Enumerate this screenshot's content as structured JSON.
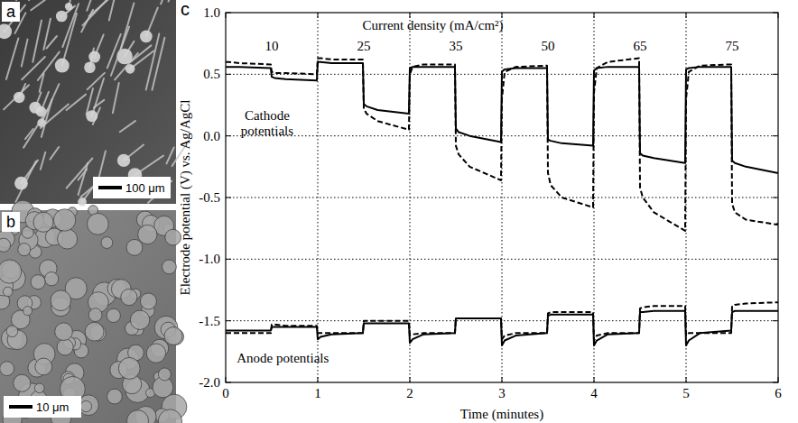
{
  "images": [
    {
      "letter": "a",
      "scale_bar": "100 μm"
    },
    {
      "letter": "b",
      "scale_bar": "10 μm"
    }
  ],
  "chart_data": {
    "letter": "c",
    "type": "line",
    "x_label": "Time (minutes)",
    "y_label": "Electrode potential (V) vs. Ag/AgCl",
    "xlim": [
      0,
      6
    ],
    "xticks": [
      0,
      1,
      2,
      3,
      4,
      5,
      6
    ],
    "ylim": [
      -2,
      1
    ],
    "yticks": [
      {
        "value": -2,
        "label": "-2.0"
      },
      {
        "value": -1.5,
        "label": "-1.5"
      },
      {
        "value": -1,
        "label": "-1.0"
      },
      {
        "value": -0.5,
        "label": "-0.5"
      },
      {
        "value": 0,
        "label": "0.0"
      },
      {
        "value": 0.5,
        "label": "0.5"
      },
      {
        "value": 1,
        "label": "1.0"
      }
    ],
    "grid": true,
    "current_density": {
      "label": "Current density (mA/cm²)",
      "values": [
        10,
        25,
        35,
        50,
        65,
        75
      ]
    },
    "annotations": [
      "Cathode potentials",
      "Anode potentials"
    ],
    "x": [
      0,
      0.03,
      0.15,
      0.49,
      0.5,
      0.53,
      0.65,
      0.99,
      1,
      1.03,
      1.15,
      1.49,
      1.5,
      1.53,
      1.65,
      1.99,
      2,
      2.03,
      2.15,
      2.49,
      2.5,
      2.53,
      2.65,
      2.99,
      3,
      3.03,
      3.15,
      3.49,
      3.5,
      3.53,
      3.65,
      3.99,
      4,
      4.03,
      4.15,
      4.49,
      4.5,
      4.53,
      4.65,
      4.99,
      5,
      5.03,
      5.15,
      5.49,
      5.5,
      5.53,
      5.65,
      5.99,
      6
    ],
    "series": [
      {
        "color": "#000000",
        "line_style": "solid",
        "values": [
          0.56,
          0.56,
          0.56,
          0.55,
          0.48,
          0.47,
          0.46,
          0.45,
          0.6,
          0.6,
          0.59,
          0.59,
          0.26,
          0.24,
          0.21,
          0.18,
          0.55,
          0.56,
          0.56,
          0.56,
          0.06,
          0.03,
          0.0,
          -0.05,
          0.52,
          0.54,
          0.55,
          0.55,
          -0.03,
          -0.04,
          -0.06,
          -0.08,
          0.53,
          0.55,
          0.56,
          0.56,
          -0.14,
          -0.16,
          -0.18,
          -0.22,
          0.54,
          0.55,
          0.56,
          0.56,
          -0.2,
          -0.22,
          -0.25,
          -0.3,
          -0.3
        ]
      },
      {
        "color": "#000000",
        "line_style": "dashed",
        "values": [
          0.6,
          0.6,
          0.59,
          0.58,
          0.52,
          0.51,
          0.51,
          0.5,
          0.63,
          0.63,
          0.62,
          0.62,
          0.22,
          0.18,
          0.12,
          0.05,
          0.5,
          0.56,
          0.58,
          0.58,
          -0.08,
          -0.15,
          -0.25,
          -0.36,
          0.3,
          0.52,
          0.56,
          0.57,
          -0.3,
          -0.4,
          -0.5,
          -0.58,
          0.35,
          0.55,
          0.6,
          0.63,
          -0.42,
          -0.5,
          -0.62,
          -0.77,
          0.3,
          0.52,
          0.57,
          0.58,
          -0.55,
          -0.62,
          -0.68,
          -0.72,
          -0.7
        ]
      },
      {
        "color": "#000000",
        "line_style": "solid",
        "values": [
          -1.58,
          -1.58,
          -1.58,
          -1.58,
          -1.55,
          -1.55,
          -1.55,
          -1.55,
          -1.65,
          -1.63,
          -1.61,
          -1.6,
          -1.52,
          -1.52,
          -1.52,
          -1.52,
          -1.68,
          -1.65,
          -1.61,
          -1.6,
          -1.48,
          -1.48,
          -1.48,
          -1.48,
          -1.7,
          -1.66,
          -1.62,
          -1.6,
          -1.46,
          -1.45,
          -1.45,
          -1.45,
          -1.7,
          -1.66,
          -1.61,
          -1.6,
          -1.43,
          -1.43,
          -1.42,
          -1.42,
          -1.7,
          -1.66,
          -1.6,
          -1.58,
          -1.43,
          -1.42,
          -1.42,
          -1.42,
          -1.42
        ]
      },
      {
        "color": "#000000",
        "line_style": "dashed",
        "values": [
          -1.6,
          -1.6,
          -1.6,
          -1.6,
          -1.53,
          -1.53,
          -1.54,
          -1.54,
          -1.6,
          -1.6,
          -1.6,
          -1.6,
          -1.5,
          -1.5,
          -1.5,
          -1.5,
          -1.62,
          -1.61,
          -1.6,
          -1.6,
          -1.48,
          -1.48,
          -1.48,
          -1.48,
          -1.65,
          -1.62,
          -1.6,
          -1.6,
          -1.44,
          -1.43,
          -1.43,
          -1.43,
          -1.66,
          -1.62,
          -1.6,
          -1.6,
          -1.4,
          -1.39,
          -1.38,
          -1.38,
          -1.62,
          -1.6,
          -1.6,
          -1.6,
          -1.38,
          -1.37,
          -1.36,
          -1.35,
          -1.35
        ]
      }
    ]
  }
}
